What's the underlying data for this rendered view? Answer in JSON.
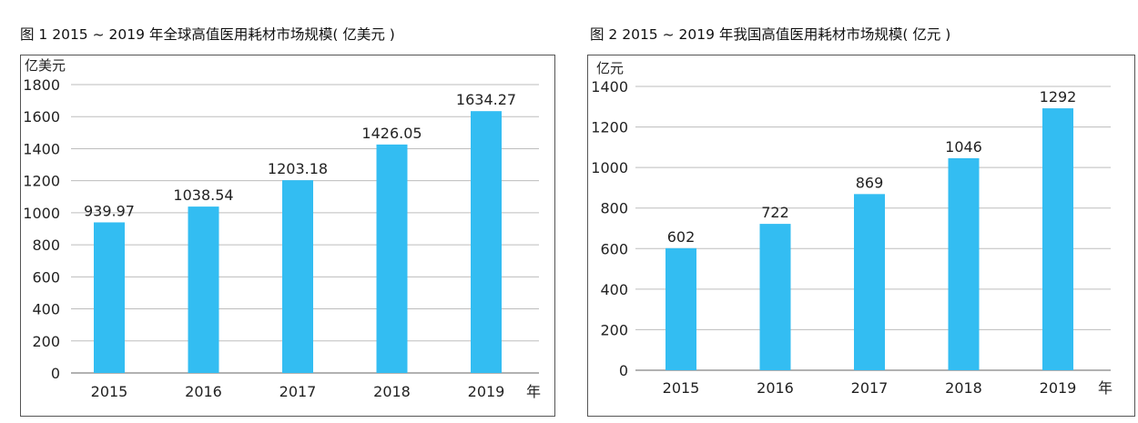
{
  "chart_data": [
    {
      "type": "bar",
      "title": "图 1   2015 ~ 2019 年全球高值医用耗材市场规模( 亿美元 )",
      "ylabel": "亿美元",
      "xlabel": "年",
      "categories": [
        "2015",
        "2016",
        "2017",
        "2018",
        "2019"
      ],
      "values": [
        939.97,
        1038.54,
        1203.18,
        1426.05,
        1634.27
      ],
      "value_labels": [
        "939.97",
        "1038.54",
        "1203.18",
        "1426.05",
        "1634.27"
      ],
      "ylim": [
        0,
        1800
      ],
      "yticks": [
        0,
        200,
        400,
        600,
        800,
        1000,
        1200,
        1400,
        1600,
        1800
      ],
      "grid": true,
      "bar_color": "#33bdf2"
    },
    {
      "type": "bar",
      "title": "图 2   2015 ~ 2019 年我国高值医用耗材市场规模( 亿元 )",
      "ylabel": "亿元",
      "xlabel": "年",
      "categories": [
        "2015",
        "2016",
        "2017",
        "2018",
        "2019"
      ],
      "values": [
        602,
        722,
        869,
        1046,
        1292
      ],
      "value_labels": [
        "602",
        "722",
        "869",
        "1046",
        "1292"
      ],
      "ylim": [
        0,
        1400
      ],
      "yticks": [
        0,
        200,
        400,
        600,
        800,
        1000,
        1200,
        1400
      ],
      "grid": true,
      "bar_color": "#33bdf2"
    }
  ]
}
